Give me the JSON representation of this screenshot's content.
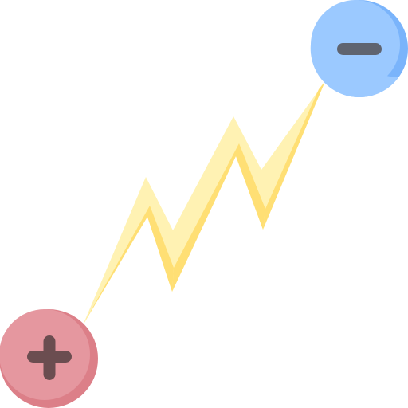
{
  "icon": {
    "name": "electric-charge-discharge",
    "elements": [
      {
        "role": "negative-charge",
        "icon": "minus-icon",
        "symbol": "−"
      },
      {
        "role": "lightning-bolt",
        "icon": "lightning-bolt-icon"
      },
      {
        "role": "positive-charge",
        "icon": "plus-icon",
        "symbol": "+"
      }
    ]
  },
  "colors": {
    "negative_fill": "#9BC9FF",
    "negative_shade": "#7AB4FB",
    "negative_sign": "#5F6470",
    "positive_fill": "#E5979F",
    "positive_shade": "#DC7F88",
    "positive_sign": "#6B4D50",
    "bolt_light": "#FFF2B3",
    "bolt_dark": "#FFDF74"
  }
}
